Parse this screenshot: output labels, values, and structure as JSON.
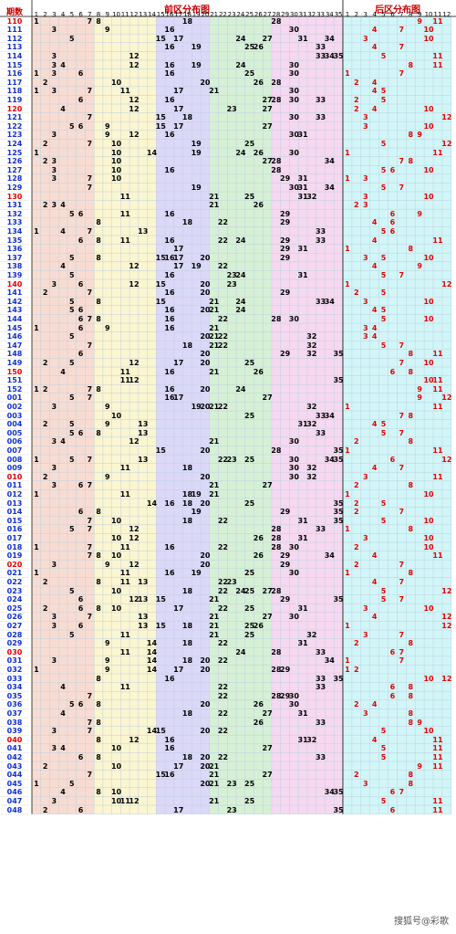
{
  "header": {
    "period_label": "期数",
    "front_title": "前区分布图",
    "back_title": "后区分布图"
  },
  "watermark": "搜狐号@彩歌",
  "colors": {
    "zone1": "#f8dcd2",
    "zone2": "#fbf6d0",
    "zone3": "#dcd8f8",
    "zone4": "#d6f0d6",
    "zone5": "#f6d8f0",
    "back": "#d2f6f8",
    "grid": "#bcd0e0",
    "red": "#e00000",
    "blue": "#1030d0",
    "dark": "#000000"
  },
  "front_columns": [
    "1",
    "2",
    "3",
    "4",
    "5",
    "6",
    "7",
    "8",
    "9",
    "10",
    "11",
    "12",
    "13",
    "14",
    "15",
    "16",
    "17",
    "18",
    "19",
    "20",
    "21",
    "22",
    "23",
    "24",
    "25",
    "26",
    "27",
    "28",
    "29",
    "30",
    "31",
    "32",
    "33",
    "34",
    "35"
  ],
  "back_columns": [
    "1",
    "2",
    "3",
    "4",
    "5",
    "6",
    "7",
    "8",
    "9",
    "10",
    "11",
    "12"
  ],
  "chart_data": {
    "type": "table",
    "title": "前区分布图 / 后区分布图",
    "rows": [
      {
        "p": "110",
        "f": [
          1,
          7,
          8,
          18,
          28
        ],
        "b": [
          9,
          11
        ]
      },
      {
        "p": "111",
        "f": [
          3,
          9,
          16,
          30
        ],
        "b": [
          4,
          7,
          10
        ]
      },
      {
        "p": "112",
        "f": [
          5,
          15,
          17,
          24,
          27,
          31,
          34
        ],
        "b": [
          3,
          10
        ]
      },
      {
        "p": "113",
        "f": [
          16,
          19,
          25,
          26,
          33
        ],
        "b": [
          4,
          7
        ]
      },
      {
        "p": "114",
        "f": [
          3,
          12,
          33,
          34,
          35
        ],
        "b": [
          5,
          11
        ]
      },
      {
        "p": "115",
        "f": [
          3,
          4,
          12,
          16,
          19,
          24,
          30
        ],
        "b": [
          8,
          11
        ]
      },
      {
        "p": "116",
        "f": [
          1,
          3,
          6,
          16,
          25,
          30
        ],
        "b": [
          1,
          7
        ]
      },
      {
        "p": "117",
        "f": [
          2,
          10,
          20,
          26,
          28
        ],
        "b": [
          2,
          4
        ]
      },
      {
        "p": "118",
        "f": [
          1,
          3,
          7,
          11,
          17,
          21,
          30
        ],
        "b": [
          4,
          5
        ]
      },
      {
        "p": "119",
        "f": [
          6,
          12,
          16,
          27,
          28,
          30,
          33
        ],
        "b": [
          2,
          5
        ]
      },
      {
        "p": "120",
        "f": [
          4,
          12,
          17,
          23,
          27
        ],
        "b": [
          2,
          4,
          10
        ]
      },
      {
        "p": "121",
        "f": [
          7,
          15,
          18,
          30,
          33
        ],
        "b": [
          3,
          12
        ]
      },
      {
        "p": "122",
        "f": [
          5,
          6,
          9,
          15,
          17,
          27
        ],
        "b": [
          3,
          10
        ]
      },
      {
        "p": "123",
        "f": [
          3,
          9,
          12,
          16,
          30,
          31
        ],
        "b": [
          8,
          9
        ]
      },
      {
        "p": "124",
        "f": [
          2,
          7,
          10,
          19,
          25
        ],
        "b": [
          5,
          12
        ]
      },
      {
        "p": "125",
        "f": [
          1,
          10,
          14,
          19,
          24,
          26,
          30
        ],
        "b": [
          1,
          11
        ]
      },
      {
        "p": "126",
        "f": [
          2,
          3,
          10,
          27,
          28,
          34
        ],
        "b": [
          7,
          8
        ]
      },
      {
        "p": "127",
        "f": [
          3,
          10,
          16,
          28
        ],
        "b": [
          5,
          6,
          10
        ]
      },
      {
        "p": "128",
        "f": [
          3,
          7,
          10,
          29,
          31
        ],
        "b": [
          1,
          3
        ]
      },
      {
        "p": "129",
        "f": [
          7,
          19,
          30,
          31,
          34
        ],
        "b": [
          5,
          7
        ]
      },
      {
        "p": "130",
        "f": [
          11,
          21,
          25,
          31,
          32
        ],
        "b": [
          3,
          10
        ]
      },
      {
        "p": "131",
        "f": [
          2,
          3,
          4,
          21,
          26
        ],
        "b": [
          2,
          3
        ]
      },
      {
        "p": "132",
        "f": [
          5,
          6,
          11,
          16,
          29
        ],
        "b": [
          6,
          9
        ]
      },
      {
        "p": "133",
        "f": [
          8,
          18,
          22,
          29
        ],
        "b": [
          4,
          6
        ]
      },
      {
        "p": "134",
        "f": [
          1,
          4,
          7,
          13,
          33
        ],
        "b": [
          5,
          6
        ]
      },
      {
        "p": "135",
        "f": [
          6,
          8,
          11,
          16,
          22,
          24,
          29,
          33
        ],
        "b": [
          4,
          11
        ]
      },
      {
        "p": "136",
        "f": [
          17,
          29,
          31
        ],
        "b": [
          1,
          8
        ]
      },
      {
        "p": "137",
        "f": [
          5,
          8,
          15,
          16,
          17,
          20,
          29
        ],
        "b": [
          3,
          5,
          10
        ]
      },
      {
        "p": "138",
        "f": [
          4,
          12,
          17,
          19,
          22
        ],
        "b": [
          4,
          9
        ]
      },
      {
        "p": "139",
        "f": [
          5,
          16,
          23,
          24,
          31
        ],
        "b": [
          5,
          7
        ]
      },
      {
        "p": "140",
        "f": [
          3,
          6,
          12,
          15,
          20,
          23
        ],
        "b": [
          1,
          12
        ]
      },
      {
        "p": "141",
        "f": [
          2,
          7,
          16,
          20,
          29
        ],
        "b": [
          2,
          5
        ]
      },
      {
        "p": "142",
        "f": [
          5,
          8,
          15,
          21,
          24,
          33,
          34
        ],
        "b": [
          3,
          10
        ]
      },
      {
        "p": "143",
        "f": [
          5,
          6,
          16,
          20,
          21,
          24
        ],
        "b": [
          4,
          5
        ]
      },
      {
        "p": "144",
        "f": [
          6,
          7,
          8,
          16,
          22,
          28,
          30
        ],
        "b": [
          5,
          10
        ]
      },
      {
        "p": "145",
        "f": [
          1,
          6,
          9,
          16,
          21
        ],
        "b": [
          3,
          4
        ]
      },
      {
        "p": "146",
        "f": [
          5,
          20,
          21,
          22,
          32
        ],
        "b": [
          3,
          4
        ]
      },
      {
        "p": "147",
        "f": [
          7,
          18,
          21,
          22,
          32
        ],
        "b": [
          5,
          7
        ]
      },
      {
        "p": "148",
        "f": [
          6,
          20,
          29,
          32,
          35
        ],
        "b": [
          8,
          11
        ]
      },
      {
        "p": "149",
        "f": [
          2,
          5,
          12,
          17,
          20,
          25
        ],
        "b": [
          7,
          10
        ]
      },
      {
        "p": "150",
        "f": [
          4,
          11,
          16,
          21,
          26
        ],
        "b": [
          6,
          8
        ]
      },
      {
        "p": "151",
        "f": [
          11,
          12,
          35
        ],
        "b": [
          10,
          11
        ]
      },
      {
        "p": "152",
        "f": [
          1,
          2,
          7,
          8,
          16,
          20,
          24
        ],
        "b": [
          9,
          11
        ]
      },
      {
        "p": "001",
        "f": [
          5,
          7,
          16,
          17,
          27
        ],
        "b": [
          9,
          12
        ]
      },
      {
        "p": "002",
        "f": [
          3,
          9,
          19,
          20,
          21,
          22,
          32
        ],
        "b": [
          1,
          11
        ]
      },
      {
        "p": "003",
        "f": [
          10,
          25,
          33,
          34
        ],
        "b": [
          7,
          8
        ]
      },
      {
        "p": "004",
        "f": [
          2,
          5,
          9,
          13,
          31,
          32
        ],
        "b": [
          4,
          5
        ]
      },
      {
        "p": "005",
        "f": [
          5,
          6,
          8,
          13,
          33
        ],
        "b": [
          5,
          7
        ]
      },
      {
        "p": "006",
        "f": [
          3,
          4,
          12,
          21,
          30
        ],
        "b": [
          2,
          8
        ]
      },
      {
        "p": "007",
        "f": [
          15,
          20,
          28,
          35
        ],
        "b": [
          1,
          11
        ]
      },
      {
        "p": "008",
        "f": [
          1,
          5,
          7,
          13,
          22,
          23,
          25,
          30,
          34,
          35
        ],
        "b": [
          6,
          12
        ]
      },
      {
        "p": "009",
        "f": [
          3,
          11,
          18,
          30,
          32
        ],
        "b": [
          4,
          7
        ]
      },
      {
        "p": "010",
        "f": [
          2,
          9,
          20,
          30,
          32
        ],
        "b": [
          3,
          11
        ]
      },
      {
        "p": "011",
        "f": [
          3,
          6,
          7,
          21,
          27
        ],
        "b": [
          2,
          8
        ]
      },
      {
        "p": "012",
        "f": [
          1,
          11,
          18,
          19,
          21
        ],
        "b": [
          1,
          10
        ]
      },
      {
        "p": "013",
        "f": [
          14,
          16,
          18,
          20,
          25,
          35
        ],
        "b": [
          2,
          5
        ]
      },
      {
        "p": "014",
        "f": [
          6,
          8,
          19,
          29,
          35
        ],
        "b": [
          2,
          7
        ]
      },
      {
        "p": "015",
        "f": [
          7,
          10,
          18,
          22,
          31,
          35
        ],
        "b": [
          5,
          10
        ]
      },
      {
        "p": "016",
        "f": [
          5,
          7,
          12,
          28,
          33
        ],
        "b": [
          1,
          8
        ]
      },
      {
        "p": "017",
        "f": [
          10,
          12,
          26,
          28,
          31
        ],
        "b": [
          3,
          10
        ]
      },
      {
        "p": "018",
        "f": [
          1,
          7,
          11,
          16,
          22,
          28,
          30
        ],
        "b": [
          2,
          10
        ]
      },
      {
        "p": "019",
        "f": [
          7,
          8,
          10,
          20,
          26,
          29,
          34
        ],
        "b": [
          4,
          11
        ]
      },
      {
        "p": "020",
        "f": [
          3,
          9,
          12,
          20,
          29
        ],
        "b": [
          2,
          7
        ]
      },
      {
        "p": "021",
        "f": [
          1,
          11,
          16,
          19,
          25,
          30
        ],
        "b": [
          1,
          8
        ]
      },
      {
        "p": "022",
        "f": [
          2,
          8,
          11,
          13,
          22,
          23
        ],
        "b": [
          4,
          7
        ]
      },
      {
        "p": "023",
        "f": [
          5,
          10,
          18,
          22,
          24,
          25,
          27,
          28
        ],
        "b": [
          5,
          12
        ]
      },
      {
        "p": "024",
        "f": [
          6,
          12,
          13,
          15,
          21,
          29,
          35
        ],
        "b": [
          5,
          7
        ]
      },
      {
        "p": "025",
        "f": [
          2,
          6,
          8,
          10,
          17,
          22,
          25,
          31
        ],
        "b": [
          3,
          10
        ]
      },
      {
        "p": "026",
        "f": [
          3,
          7,
          13,
          21,
          27,
          30
        ],
        "b": [
          4,
          12
        ]
      },
      {
        "p": "027",
        "f": [
          3,
          6,
          13,
          15,
          18,
          21,
          25,
          26
        ],
        "b": [
          1,
          12
        ]
      },
      {
        "p": "028",
        "f": [
          5,
          11,
          21,
          25,
          32
        ],
        "b": [
          3,
          7
        ]
      },
      {
        "p": "029",
        "f": [
          9,
          14,
          18,
          22,
          31
        ],
        "b": [
          2,
          8
        ]
      },
      {
        "p": "030",
        "f": [
          11,
          14,
          24,
          28,
          33
        ],
        "b": [
          6,
          7
        ]
      },
      {
        "p": "031",
        "f": [
          3,
          9,
          14,
          18,
          20,
          22,
          34
        ],
        "b": [
          1,
          7
        ]
      },
      {
        "p": "032",
        "f": [
          1,
          9,
          14,
          17,
          20,
          28,
          29
        ],
        "b": [
          1,
          2
        ]
      },
      {
        "p": "033",
        "f": [
          8,
          16,
          33,
          35
        ],
        "b": [
          10,
          12
        ]
      },
      {
        "p": "034",
        "f": [
          4,
          11,
          22,
          33
        ],
        "b": [
          6,
          8
        ]
      },
      {
        "p": "035",
        "f": [
          7,
          22,
          28,
          29,
          30
        ],
        "b": [
          6,
          8
        ]
      },
      {
        "p": "036",
        "f": [
          5,
          6,
          8,
          20,
          26,
          30
        ],
        "b": [
          2,
          4
        ]
      },
      {
        "p": "037",
        "f": [
          4,
          18,
          22,
          27,
          31
        ],
        "b": [
          3,
          8
        ]
      },
      {
        "p": "038",
        "f": [
          7,
          8,
          26,
          33
        ],
        "b": [
          8,
          9
        ]
      },
      {
        "p": "039",
        "f": [
          3,
          7,
          14,
          15,
          20,
          22
        ],
        "b": [
          5,
          10
        ]
      },
      {
        "p": "040",
        "f": [
          8,
          12,
          16,
          31,
          32
        ],
        "b": [
          4,
          11
        ]
      },
      {
        "p": "041",
        "f": [
          3,
          4,
          10,
          16,
          27
        ],
        "b": [
          5,
          11
        ]
      },
      {
        "p": "042",
        "f": [
          6,
          8,
          18,
          20,
          22,
          33
        ],
        "b": [
          5,
          11
        ]
      },
      {
        "p": "043",
        "f": [
          2,
          10,
          17,
          20,
          21
        ],
        "b": [
          9,
          11
        ]
      },
      {
        "p": "044",
        "f": [
          7,
          15,
          16,
          21,
          27
        ],
        "b": [
          2,
          8
        ]
      },
      {
        "p": "045",
        "f": [
          1,
          5,
          20,
          21,
          23,
          25
        ],
        "b": [
          3,
          8
        ]
      },
      {
        "p": "046",
        "f": [
          4,
          8,
          10,
          34,
          35
        ],
        "b": [
          6,
          7
        ]
      },
      {
        "p": "047",
        "f": [
          3,
          10,
          11,
          12,
          21,
          25
        ],
        "b": [
          5,
          11
        ]
      },
      {
        "p": "048",
        "f": [
          2,
          6,
          17,
          23,
          35
        ],
        "b": [
          6,
          11
        ]
      }
    ]
  }
}
